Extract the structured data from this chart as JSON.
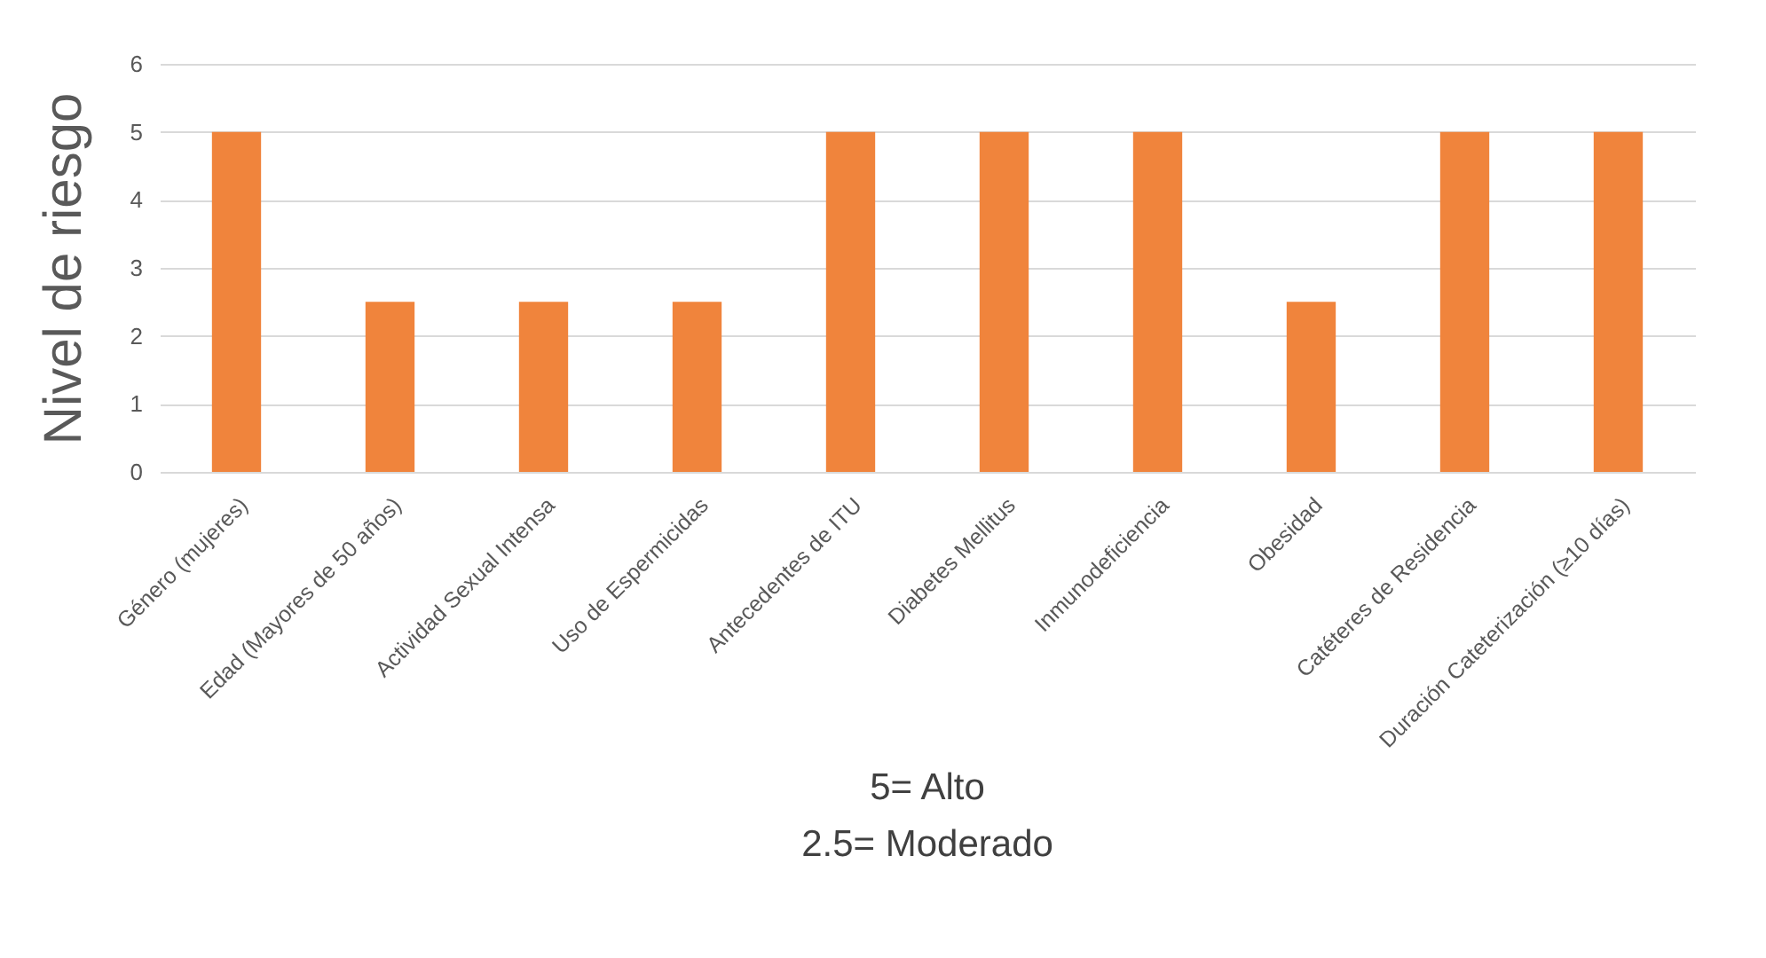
{
  "chart_data": {
    "type": "bar",
    "ylabel": "Nivel de riesgo",
    "categories": [
      "Género (mujeres)",
      "Edad (Mayores de 50 años)",
      "Actividad Sexual Intensa",
      "Uso de Espermicidas",
      "Antecedentes de ITU",
      "Diabetes Mellitus",
      "Inmunodeficiencia",
      "Obesidad",
      "Catéteres de Residencia",
      "Duración Cateterización (≥10 días)"
    ],
    "values": [
      5,
      2.5,
      2.5,
      2.5,
      5,
      5,
      5,
      2.5,
      5,
      5
    ],
    "color": "#f0843c",
    "ylim": [
      0,
      6
    ],
    "yticks": [
      0,
      1,
      2,
      3,
      4,
      5,
      6
    ],
    "grid": "y",
    "legend": false,
    "annotations": [
      "5= Alto",
      "2.5=  Moderado"
    ]
  }
}
